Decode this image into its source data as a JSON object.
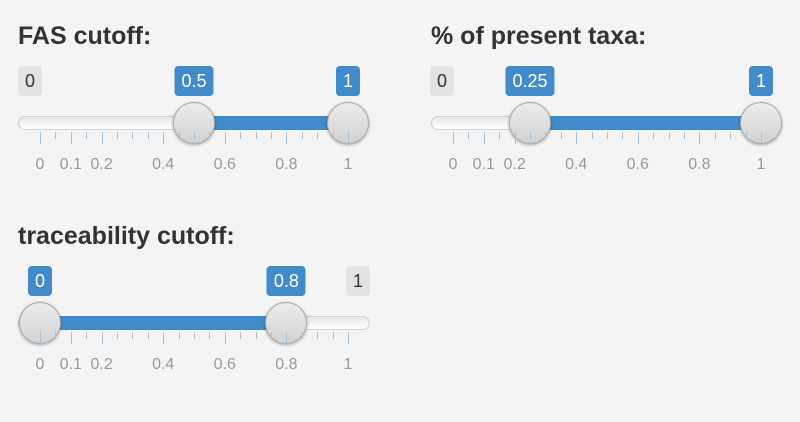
{
  "sliders": [
    {
      "label": "FAS cutoff:",
      "min_label": "0",
      "max_label": "1",
      "from_label": "0.5",
      "to_label": "1",
      "from_value": 0.5,
      "to_value": 1,
      "tick_labels": [
        "0",
        "0.1",
        "0.2",
        "0.4",
        "0.6",
        "0.8",
        "1"
      ]
    },
    {
      "label": "% of present taxa:",
      "min_label": "0",
      "max_label": "1",
      "from_label": "0.25",
      "to_label": "1",
      "from_value": 0.25,
      "to_value": 1,
      "tick_labels": [
        "0",
        "0.1",
        "0.2",
        "0.4",
        "0.6",
        "0.8",
        "1"
      ]
    },
    {
      "label": "traceability cutoff:",
      "min_label": "0",
      "max_label": "1",
      "from_label": "0",
      "to_label": "0.8",
      "from_value": 0,
      "to_value": 0.8,
      "tick_labels": [
        "0",
        "0.1",
        "0.2",
        "0.4",
        "0.6",
        "0.8",
        "1"
      ]
    }
  ],
  "colors": {
    "accent": "#428bca",
    "background": "#f4f4f4",
    "edge_badge": "#e2e2e2",
    "tick": "#9fc2de"
  }
}
